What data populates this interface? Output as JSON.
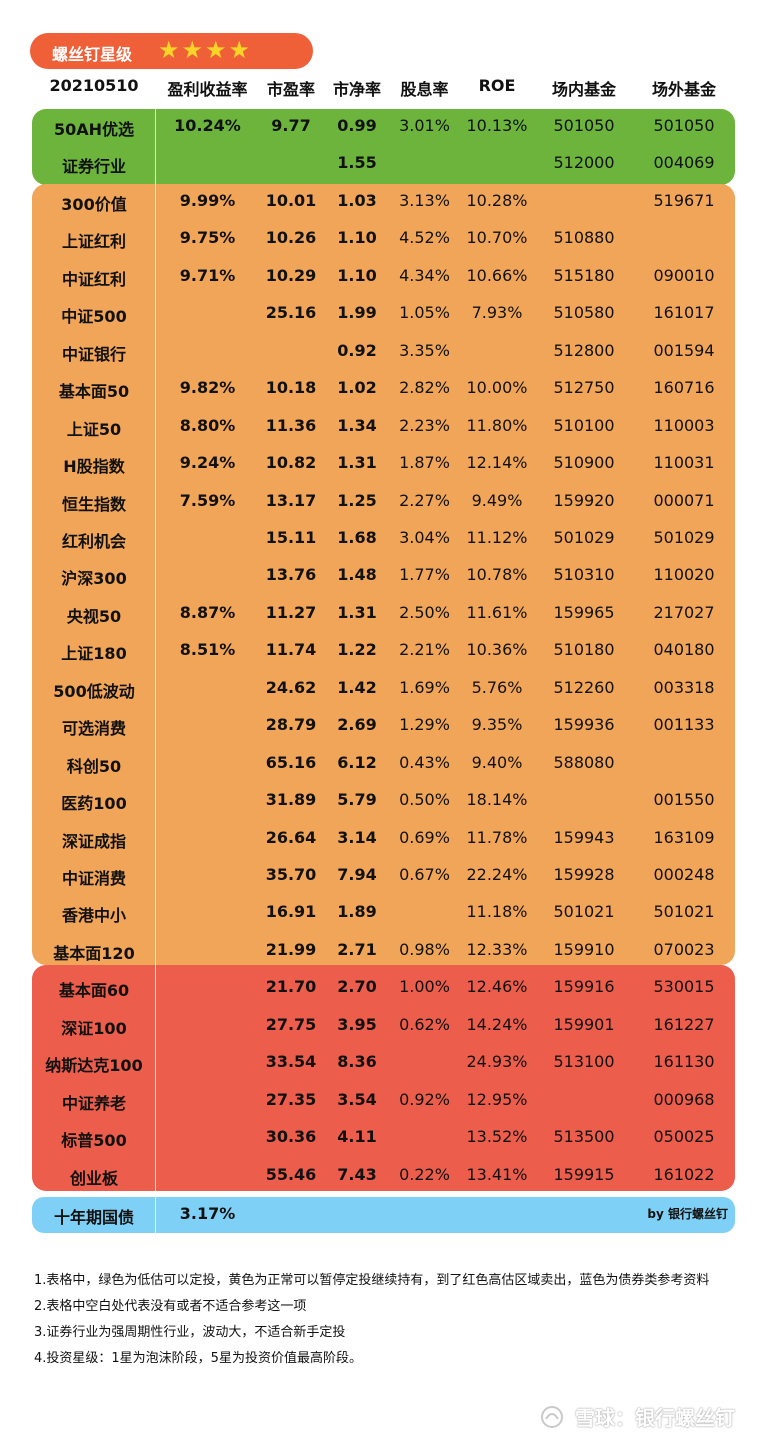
{
  "badge": {
    "title": "螺丝钉星级",
    "stars": "★★★★"
  },
  "header": [
    "20210510",
    "盈利收益率",
    "市盈率",
    "市净率",
    "股息率",
    "ROE",
    "场内基金",
    "场外基金"
  ],
  "rows": [
    [
      "50AH优选",
      "10.24%",
      "9.77",
      "0.99",
      "3.01%",
      "10.13%",
      "501050",
      "501050"
    ],
    [
      "证券行业",
      "",
      "",
      "1.55",
      "",
      "",
      "512000",
      "004069"
    ],
    [
      "300价值",
      "9.99%",
      "10.01",
      "1.03",
      "3.13%",
      "10.28%",
      "",
      "519671"
    ],
    [
      "上证红利",
      "9.75%",
      "10.26",
      "1.10",
      "4.52%",
      "10.70%",
      "510880",
      ""
    ],
    [
      "中证红利",
      "9.71%",
      "10.29",
      "1.10",
      "4.34%",
      "10.66%",
      "515180",
      "090010"
    ],
    [
      "中证500",
      "",
      "25.16",
      "1.99",
      "1.05%",
      "7.93%",
      "510580",
      "161017"
    ],
    [
      "中证银行",
      "",
      "",
      "0.92",
      "3.35%",
      "",
      "512800",
      "001594"
    ],
    [
      "基本面50",
      "9.82%",
      "10.18",
      "1.02",
      "2.82%",
      "10.00%",
      "512750",
      "160716"
    ],
    [
      "上证50",
      "8.80%",
      "11.36",
      "1.34",
      "2.23%",
      "11.80%",
      "510100",
      "110003"
    ],
    [
      "H股指数",
      "9.24%",
      "10.82",
      "1.31",
      "1.87%",
      "12.14%",
      "510900",
      "110031"
    ],
    [
      "恒生指数",
      "7.59%",
      "13.17",
      "1.25",
      "2.27%",
      "9.49%",
      "159920",
      "000071"
    ],
    [
      "红利机会",
      "",
      "15.11",
      "1.68",
      "3.04%",
      "11.12%",
      "501029",
      "501029"
    ],
    [
      "沪深300",
      "",
      "13.76",
      "1.48",
      "1.77%",
      "10.78%",
      "510310",
      "110020"
    ],
    [
      "央视50",
      "8.87%",
      "11.27",
      "1.31",
      "2.50%",
      "11.61%",
      "159965",
      "217027"
    ],
    [
      "上证180",
      "8.51%",
      "11.74",
      "1.22",
      "2.21%",
      "10.36%",
      "510180",
      "040180"
    ],
    [
      "500低波动",
      "",
      "24.62",
      "1.42",
      "1.69%",
      "5.76%",
      "512260",
      "003318"
    ],
    [
      "可选消费",
      "",
      "28.79",
      "2.69",
      "1.29%",
      "9.35%",
      "159936",
      "001133"
    ],
    [
      "科创50",
      "",
      "65.16",
      "6.12",
      "0.43%",
      "9.40%",
      "588080",
      ""
    ],
    [
      "医药100",
      "",
      "31.89",
      "5.79",
      "0.50%",
      "18.14%",
      "",
      "001550"
    ],
    [
      "深证成指",
      "",
      "26.64",
      "3.14",
      "0.69%",
      "11.78%",
      "159943",
      "163109"
    ],
    [
      "中证消费",
      "",
      "35.70",
      "7.94",
      "0.67%",
      "22.24%",
      "159928",
      "000248"
    ],
    [
      "香港中小",
      "",
      "16.91",
      "1.89",
      "",
      "11.18%",
      "501021",
      "501021"
    ],
    [
      "基本面120",
      "",
      "21.99",
      "2.71",
      "0.98%",
      "12.33%",
      "159910",
      "070023"
    ],
    [
      "基本面60",
      "",
      "21.70",
      "2.70",
      "1.00%",
      "12.46%",
      "159916",
      "530015"
    ],
    [
      "深证100",
      "",
      "27.75",
      "3.95",
      "0.62%",
      "14.24%",
      "159901",
      "161227"
    ],
    [
      "纳斯达克100",
      "",
      "33.54",
      "8.36",
      "",
      "24.93%",
      "513100",
      "161130"
    ],
    [
      "中证养老",
      "",
      "27.35",
      "3.54",
      "0.92%",
      "12.95%",
      "",
      "000968"
    ],
    [
      "标普500",
      "",
      "30.36",
      "4.11",
      "",
      "13.52%",
      "513500",
      "050025"
    ],
    [
      "创业板",
      "",
      "55.46",
      "7.43",
      "0.22%",
      "13.41%",
      "159915",
      "161022"
    ]
  ],
  "bond": {
    "name": "十年期国债",
    "yield": "3.17%",
    "byline": "by 银行螺丝钉"
  },
  "colors": {
    "green": "#6cb43c",
    "orange": "#f1a558",
    "red": "#ec5d4c",
    "blue": "#7fd0f6",
    "badge": "#ef5f38"
  },
  "notes": [
    "1.表格中，绿色为低估可以定投，黄色为正常可以暂停定投继续持有，到了红色高估区域卖出，蓝色为债券类参考资料",
    "2.表格中空白处代表没有或者不适合参考这一项",
    "3.证券行业为强周期性行业，波动大，不适合新手定投",
    "4.投资星级：1星为泡沫阶段，5星为投资价值最高阶段。"
  ],
  "watermark": "雪球：银行螺丝钉"
}
